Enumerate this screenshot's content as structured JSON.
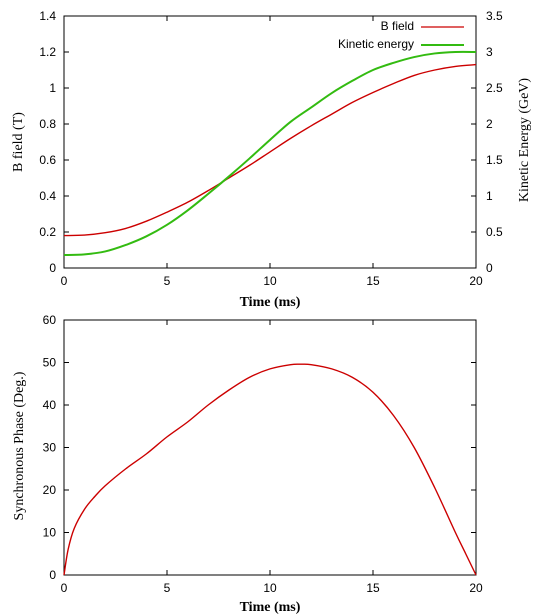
{
  "chart_data": [
    {
      "type": "line",
      "xlabel": "Time (ms)",
      "ylabel": "B field (T)",
      "y2label": "Kinetic Energy (GeV)",
      "xlim": [
        0,
        20
      ],
      "ylim": [
        0,
        1.4
      ],
      "y2lim": [
        0,
        3.5
      ],
      "xticks": [
        "0",
        "5",
        "10",
        "15",
        "20"
      ],
      "yticks": [
        "0",
        "0.2",
        "0.4",
        "0.6",
        "0.8",
        "1",
        "1.2",
        "1.4"
      ],
      "y2ticks": [
        "0",
        "0.5",
        "1",
        "1.5",
        "2",
        "2.5",
        "3",
        "3.5"
      ],
      "legend_position": "top-right",
      "grid": false,
      "series": [
        {
          "name": "B field",
          "axis": "left",
          "color": "#cc0000",
          "x": [
            0,
            1,
            2,
            3,
            4,
            5,
            6,
            7,
            8,
            9,
            10,
            11,
            12,
            13,
            14,
            15,
            16,
            17,
            18,
            19,
            20
          ],
          "y": [
            0.18,
            0.183,
            0.196,
            0.22,
            0.26,
            0.31,
            0.365,
            0.43,
            0.5,
            0.57,
            0.645,
            0.72,
            0.79,
            0.855,
            0.92,
            0.975,
            1.025,
            1.07,
            1.1,
            1.12,
            1.13
          ]
        },
        {
          "name": "Kinetic energy",
          "axis": "right",
          "color": "#33bb11",
          "x": [
            0,
            1,
            2,
            3,
            4,
            5,
            6,
            7,
            8,
            9,
            10,
            11,
            12,
            13,
            14,
            15,
            16,
            17,
            18,
            19,
            20
          ],
          "y": [
            0.18,
            0.19,
            0.23,
            0.32,
            0.44,
            0.6,
            0.8,
            1.03,
            1.27,
            1.52,
            1.78,
            2.03,
            2.23,
            2.43,
            2.6,
            2.75,
            2.85,
            2.93,
            2.98,
            3.0,
            3.0
          ]
        }
      ]
    },
    {
      "type": "line",
      "xlabel": "Time (ms)",
      "ylabel": "Synchronous Phase (Deg.)",
      "xlim": [
        0,
        20
      ],
      "ylim": [
        0,
        60
      ],
      "xticks": [
        "0",
        "5",
        "10",
        "15",
        "20"
      ],
      "yticks": [
        "0",
        "10",
        "20",
        "30",
        "40",
        "50",
        "60"
      ],
      "grid": false,
      "series": [
        {
          "color": "#cc0000",
          "x": [
            0,
            0.2,
            0.5,
            1,
            1.5,
            2,
            3,
            4,
            5,
            6,
            7,
            8,
            9,
            10,
            11,
            11.5,
            12,
            13,
            14,
            15,
            16,
            17,
            18,
            19,
            19.5,
            20
          ],
          "y": [
            0,
            6,
            11,
            15.5,
            18.5,
            21,
            25,
            28.5,
            32.5,
            36,
            40,
            43.5,
            46.5,
            48.5,
            49.5,
            49.6,
            49.5,
            48.5,
            46.5,
            43,
            37.5,
            30,
            20.5,
            10,
            5,
            0
          ]
        }
      ]
    }
  ]
}
